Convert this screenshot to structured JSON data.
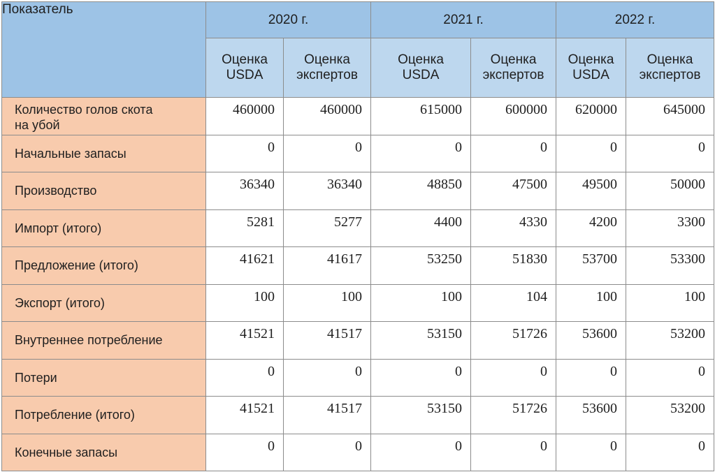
{
  "table": {
    "indicator_header": "Показатель",
    "years": [
      "2020 г.",
      "2021 г.",
      "2022 г."
    ],
    "sub_headers": [
      [
        "Оценка",
        "USDA"
      ],
      [
        "Оценка",
        "экспертов"
      ],
      [
        "Оценка",
        "USDA"
      ],
      [
        "Оценка",
        "экспертов"
      ],
      [
        "Оценка",
        "USDA"
      ],
      [
        "Оценка",
        "экспертов"
      ]
    ],
    "rows": [
      {
        "label": [
          "Количество голов скота",
          "на убой"
        ],
        "values": [
          "460000",
          "460000",
          "615000",
          "600000",
          "620000",
          "645000"
        ]
      },
      {
        "label": [
          "Начальные запасы"
        ],
        "values": [
          "0",
          "0",
          "0",
          "0",
          "0",
          "0"
        ]
      },
      {
        "label": [
          "Производство"
        ],
        "values": [
          "36340",
          "36340",
          "48850",
          "47500",
          "49500",
          "50000"
        ]
      },
      {
        "label": [
          "Импорт (итого)"
        ],
        "values": [
          "5281",
          "5277",
          "4400",
          "4330",
          "4200",
          "3300"
        ]
      },
      {
        "label": [
          "Предложение (итого)"
        ],
        "values": [
          "41621",
          "41617",
          "53250",
          "51830",
          "53700",
          "53300"
        ]
      },
      {
        "label": [
          "Экспорт (итого)"
        ],
        "values": [
          "100",
          "100",
          "100",
          "104",
          "100",
          "100"
        ]
      },
      {
        "label": [
          "Внутреннее потребление"
        ],
        "values": [
          "41521",
          "41517",
          "53150",
          "51726",
          "53600",
          "53200"
        ]
      },
      {
        "label": [
          "Потери"
        ],
        "values": [
          "0",
          "0",
          "0",
          "0",
          "0",
          "0"
        ]
      },
      {
        "label": [
          "Потребление (итого)"
        ],
        "values": [
          "41521",
          "41517",
          "53150",
          "51726",
          "53600",
          "53200"
        ]
      },
      {
        "label": [
          "Конечные запасы"
        ],
        "values": [
          "0",
          "0",
          "0",
          "0",
          "0",
          "0"
        ]
      }
    ]
  },
  "colors": {
    "header_year_bg": "#9dc3e6",
    "header_sub_bg": "#bdd7ee",
    "row_label_bg": "#f8cbad",
    "cell_bg": "#ffffff",
    "border": "#8c8c8c"
  }
}
